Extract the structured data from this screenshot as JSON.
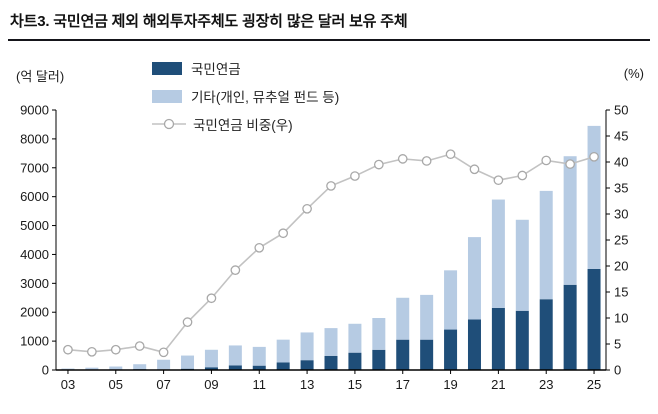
{
  "title": "차트3. 국민연금 제외 해외투자주체도 굉장히 많은 달러 보유 주체",
  "chart_data": {
    "type": "bar",
    "overlay": "line",
    "grid": false,
    "legend_position": "top-left-inside",
    "categories": [
      2003,
      2004,
      2005,
      2006,
      2007,
      2008,
      2009,
      2010,
      2011,
      2012,
      2013,
      2014,
      2015,
      2016,
      2017,
      2018,
      2019,
      2020,
      2021,
      2022,
      2023,
      2024,
      2025
    ],
    "x_tick_labels": [
      "03",
      "05",
      "07",
      "09",
      "11",
      "13",
      "15",
      "17",
      "19",
      "21",
      "23",
      "25"
    ],
    "x_tick_step": 2,
    "left_axis": {
      "unit": "(억 달러)",
      "min": 0,
      "max": 9000,
      "step": 1000
    },
    "right_axis": {
      "unit": "(%)",
      "min": 0,
      "max": 50,
      "step": 5
    },
    "series": [
      {
        "name": "국민연금",
        "type": "bar",
        "stack": true,
        "axis": "left",
        "color": "#1f4e79",
        "values": [
          5,
          8,
          12,
          30,
          18,
          45,
          95,
          160,
          150,
          260,
          340,
          490,
          600,
          700,
          1050,
          1050,
          1400,
          1750,
          2150,
          2050,
          2450,
          2950,
          3500
        ]
      },
      {
        "name": "기타(개인, 뮤추얼 펀드 등)",
        "type": "bar",
        "stack": true,
        "axis": "left",
        "color": "#b6cbe3",
        "values": [
          45,
          72,
          108,
          170,
          337,
          455,
          605,
          690,
          650,
          790,
          960,
          960,
          1000,
          1100,
          1450,
          1550,
          2050,
          2850,
          3750,
          3150,
          3750,
          4450,
          4950
        ]
      },
      {
        "name": "국민연금 비중(우)",
        "type": "line",
        "axis": "right",
        "color": "#c2c2c2",
        "marker_color": "#a8a8a8",
        "values": [
          3.9,
          3.5,
          3.9,
          4.6,
          3.4,
          9.2,
          13.8,
          19.2,
          23.5,
          26.3,
          31.0,
          35.4,
          37.3,
          39.5,
          40.6,
          40.2,
          41.5,
          38.6,
          36.5,
          37.4,
          40.3,
          39.6,
          41.0
        ]
      }
    ]
  }
}
